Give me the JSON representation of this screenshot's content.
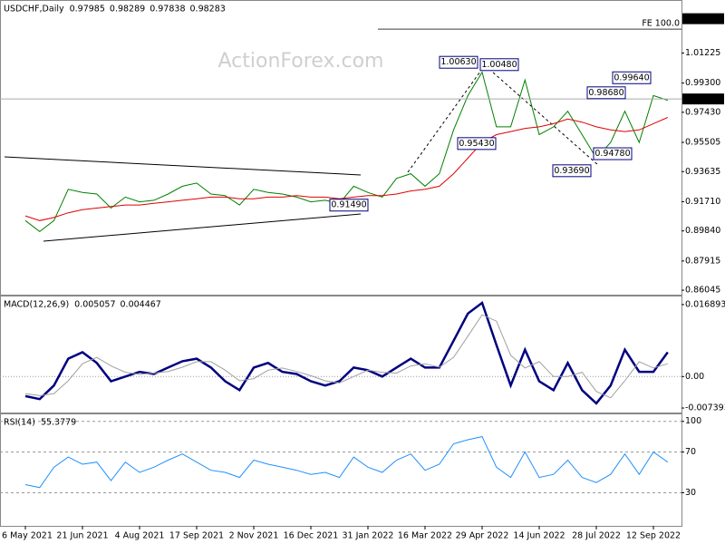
{
  "chart_data": [
    {
      "type": "line",
      "title": "USDCHF,Daily",
      "readout": [
        0.97985,
        0.98289,
        0.97838,
        0.98283
      ],
      "watermark": "ActionForex.com",
      "categories": [
        "6 May 2021",
        null,
        null,
        null,
        "21 Jun 2021",
        null,
        null,
        null,
        "4 Aug 2021",
        null,
        null,
        null,
        "17 Sep 2021",
        null,
        null,
        null,
        "2 Nov 2021",
        null,
        null,
        null,
        "16 Dec 2021",
        null,
        null,
        null,
        "31 Jan 2022",
        null,
        null,
        null,
        "16 Mar 2022",
        null,
        null,
        null,
        "29 Apr 2022",
        null,
        null,
        null,
        "14 Jun 2022",
        null,
        null,
        null,
        "28 Jul 2022",
        null,
        null,
        null,
        "12 Sep 2022",
        null
      ],
      "series": [
        {
          "color": "#008000",
          "values": [
            0.905,
            0.898,
            0.905,
            0.925,
            0.923,
            0.922,
            0.913,
            0.92,
            0.917,
            0.918,
            0.922,
            0.927,
            0.929,
            0.922,
            0.921,
            0.915,
            0.925,
            0.923,
            0.922,
            0.92,
            0.917,
            0.918,
            0.916,
            0.927,
            0.923,
            0.92,
            0.932,
            0.935,
            0.927,
            0.935,
            0.963,
            0.985,
            1.0,
            0.965,
            0.965,
            0.995,
            0.96,
            0.965,
            0.975,
            0.96,
            0.945,
            0.955,
            0.975,
            0.955,
            0.985,
            0.982
          ]
        },
        {
          "color": "#e00000",
          "values": [
            0.908,
            0.905,
            0.907,
            0.91,
            0.912,
            0.913,
            0.914,
            0.915,
            0.915,
            0.916,
            0.917,
            0.918,
            0.919,
            0.92,
            0.92,
            0.919,
            0.919,
            0.92,
            0.92,
            0.921,
            0.92,
            0.92,
            0.919,
            0.92,
            0.921,
            0.921,
            0.922,
            0.924,
            0.925,
            0.927,
            0.935,
            0.945,
            0.955,
            0.96,
            0.962,
            0.964,
            0.965,
            0.967,
            0.97,
            0.968,
            0.965,
            0.963,
            0.962,
            0.963,
            0.967,
            0.971
          ]
        }
      ],
      "ylim": [
        0.8576,
        1.045
      ],
      "yticks": [
        1.01225,
        {
          "value": 0.993,
          "label": "0.99300"
        },
        {
          "value": 0.9743,
          "label": "0.97430"
        },
        0.95505,
        0.93635,
        {
          "value": 0.9171,
          "label": "0.91710"
        },
        {
          "value": 0.8984,
          "label": "0.89840"
        },
        0.87915,
        0.86045
      ],
      "last_price": 0.98283,
      "markers": [
        {
          "value": 1.0342,
          "label": "1.03420"
        }
      ],
      "fe_line": {
        "label": "FE 100.0",
        "value": 1.0275
      },
      "annotations": [
        {
          "value": 1.0063,
          "label": "1.00630"
        },
        {
          "value": 1.0048,
          "label": "1.00480"
        },
        {
          "value": 0.9543,
          "label": "0.95430"
        },
        {
          "value": 0.9369,
          "label": "0.93690"
        },
        {
          "value": 0.9478,
          "label": "0.94780"
        },
        {
          "value": 0.9868,
          "label": "0.98680"
        },
        {
          "value": 0.9964,
          "label": "0.99640"
        },
        {
          "value": 0.9149,
          "label": "0.91490"
        }
      ]
    },
    {
      "type": "line",
      "title": "MACD(12,26,9)",
      "readout": [
        0.005057,
        0.004467
      ],
      "series": [
        {
          "color": "#000080",
          "values": [
            -0.0046,
            -0.0053,
            -0.0021,
            0.0042,
            0.0057,
            0.0032,
            -0.0011,
            0,
            0.0011,
            0.0006,
            0.0021,
            0.0036,
            0.0042,
            0.0021,
            -0.0011,
            -0.0032,
            0.0021,
            0.0032,
            0.0011,
            0.0006,
            -0.0011,
            -0.0021,
            -0.0011,
            0.0021,
            0.0015,
            0,
            0.0021,
            0.0042,
            0.0021,
            0.0021,
            0.0084,
            0.0148,
            0.0173,
            0.0074,
            -0.0021,
            0.0063,
            -0.0011,
            -0.0032,
            0.0032,
            -0.0032,
            -0.0063,
            -0.0021,
            0.0063,
            0.0011,
            0.0011,
            0.0057
          ]
        },
        {
          "color": "#a0a0a0",
          "values": [
            -0.004,
            -0.0045,
            -0.004,
            -0.001,
            0.003,
            0.0045,
            0.0025,
            0.001,
            0.0005,
            0.0008,
            0.0012,
            0.0022,
            0.0035,
            0.0035,
            0.0015,
            -0.001,
            -0.0005,
            0.0015,
            0.002,
            0.0012,
            0.0002,
            -0.001,
            -0.0015,
            0,
            0.0015,
            0.001,
            0.0008,
            0.0025,
            0.003,
            0.0022,
            0.0045,
            0.0095,
            0.0145,
            0.013,
            0.005,
            0.002,
            0.0035,
            0,
            0,
            0.001,
            -0.0035,
            -0.005,
            -0.001,
            0.0035,
            0.002,
            0.003
          ]
        }
      ],
      "ylim": [
        -0.00845,
        0.01858
      ],
      "yticks": [
        0.016893,
        {
          "value": 0,
          "label": "0.00"
        },
        -0.007393
      ],
      "zero_line": true
    },
    {
      "type": "line",
      "title": "RSI(14)",
      "readout": [
        55.3779
      ],
      "series": [
        {
          "color": "#1e90ff",
          "values": [
            38,
            35,
            55,
            65,
            58,
            60,
            42,
            60,
            50,
            55,
            62,
            68,
            60,
            52,
            50,
            45,
            62,
            58,
            55,
            52,
            48,
            50,
            45,
            65,
            55,
            50,
            62,
            68,
            52,
            58,
            78,
            82,
            85,
            55,
            45,
            70,
            45,
            48,
            62,
            45,
            40,
            48,
            68,
            48,
            70,
            60
          ]
        }
      ],
      "ylim": [
        -2.5,
        106
      ],
      "yticks": [
        100,
        70,
        30
      ],
      "grid": true
    }
  ]
}
